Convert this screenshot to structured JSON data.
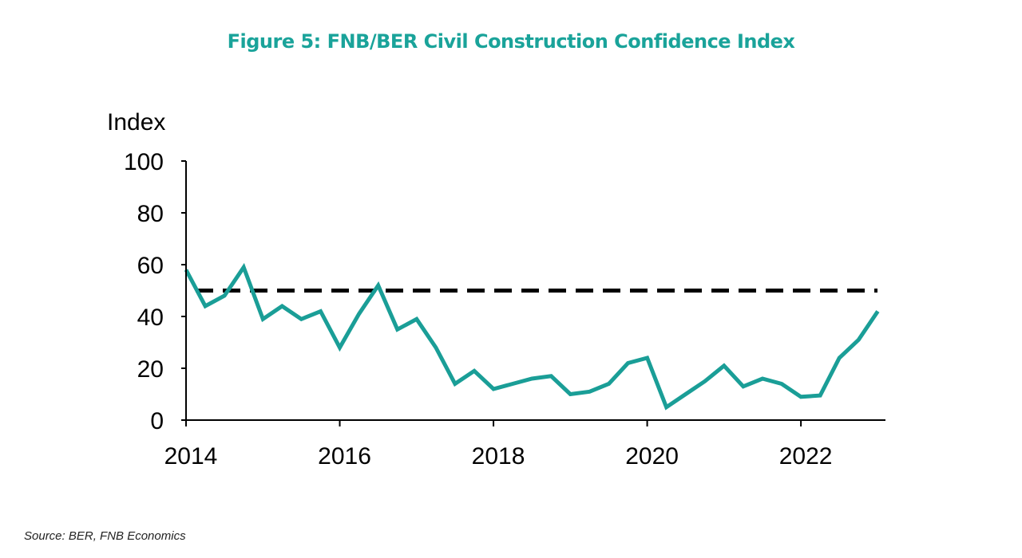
{
  "title": "Figure 5: FNB/BER Civil Construction Confidence Index",
  "source": "Source: BER, FNB Economics",
  "colors": {
    "title": "#1aa39a",
    "series": "#1a9e97",
    "reference": "#000000",
    "axis": "#000000"
  },
  "chart_data": {
    "type": "line",
    "title": "Figure 5: FNB/BER Civil Construction Confidence Index",
    "xlabel": "",
    "ylabel": "Index",
    "xlim": [
      2014,
      2023.1
    ],
    "ylim": [
      0,
      100
    ],
    "xticks": [
      2014,
      2016,
      2018,
      2020,
      2022
    ],
    "xtick_labels": [
      "2014",
      "2016",
      "2018",
      "2020",
      "2022"
    ],
    "yticks": [
      0,
      20,
      40,
      60,
      80,
      100
    ],
    "ytick_labels": [
      "0",
      "20",
      "40",
      "60",
      "80",
      "100"
    ],
    "grid": false,
    "legend": "none",
    "series": [
      {
        "x": [
          2014.0,
          2014.25,
          2014.5,
          2014.75,
          2015.0,
          2015.25,
          2015.5,
          2015.75,
          2016.0,
          2016.25,
          2016.5,
          2016.75,
          2017.0,
          2017.25,
          2017.5,
          2017.75,
          2018.0,
          2018.25,
          2018.5,
          2018.75,
          2019.0,
          2019.25,
          2019.5,
          2019.75,
          2020.0,
          2020.25,
          2020.5,
          2020.75,
          2021.0,
          2021.25,
          2021.5,
          2021.75,
          2022.0,
          2022.25,
          2022.5,
          2022.75,
          2023.0
        ],
        "values": [
          58,
          44,
          48,
          59,
          39,
          44,
          39,
          42,
          28,
          41,
          52,
          35,
          39,
          28,
          14,
          19,
          12,
          14,
          16,
          17,
          10,
          11,
          14,
          22,
          24,
          5,
          10,
          15,
          21,
          13,
          16,
          14,
          9,
          9.5,
          24,
          31,
          42
        ]
      }
    ],
    "reference_lines": [
      {
        "y": 50,
        "style": "dashed"
      }
    ]
  }
}
